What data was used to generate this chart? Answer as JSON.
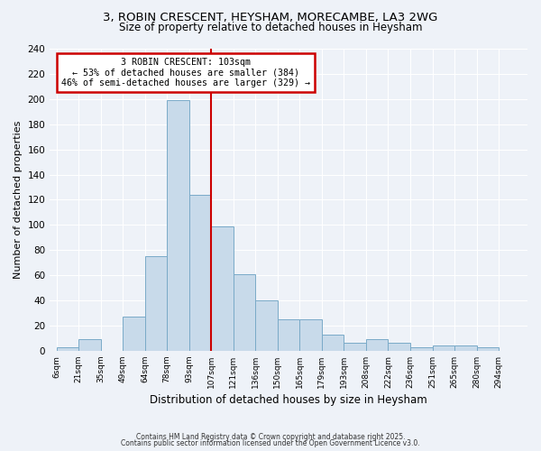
{
  "title1": "3, ROBIN CRESCENT, HEYSHAM, MORECAMBE, LA3 2WG",
  "title2": "Size of property relative to detached houses in Heysham",
  "xlabel": "Distribution of detached houses by size in Heysham",
  "ylabel": "Number of detached properties",
  "bin_labels": [
    "6sqm",
    "21sqm",
    "35sqm",
    "49sqm",
    "64sqm",
    "78sqm",
    "93sqm",
    "107sqm",
    "121sqm",
    "136sqm",
    "150sqm",
    "165sqm",
    "179sqm",
    "193sqm",
    "208sqm",
    "222sqm",
    "236sqm",
    "251sqm",
    "265sqm",
    "280sqm",
    "294sqm"
  ],
  "counts": [
    3,
    9,
    0,
    27,
    75,
    199,
    124,
    99,
    61,
    40,
    25,
    25,
    13,
    6,
    9,
    6,
    3,
    4,
    4,
    3
  ],
  "bar_facecolor": "#c8daea",
  "bar_edgecolor": "#7aaac8",
  "vline_x": 7,
  "annotation_title": "3 ROBIN CRESCENT: 103sqm",
  "annotation_line1": "← 53% of detached houses are smaller (384)",
  "annotation_line2": "46% of semi-detached houses are larger (329) →",
  "annotation_box_color": "#cc0000",
  "background_color": "#eef2f8",
  "grid_color": "#ffffff",
  "ylim": [
    0,
    240
  ],
  "yticks": [
    0,
    20,
    40,
    60,
    80,
    100,
    120,
    140,
    160,
    180,
    200,
    220,
    240
  ],
  "footer1": "Contains HM Land Registry data © Crown copyright and database right 2025.",
  "footer2": "Contains public sector information licensed under the Open Government Licence v3.0."
}
